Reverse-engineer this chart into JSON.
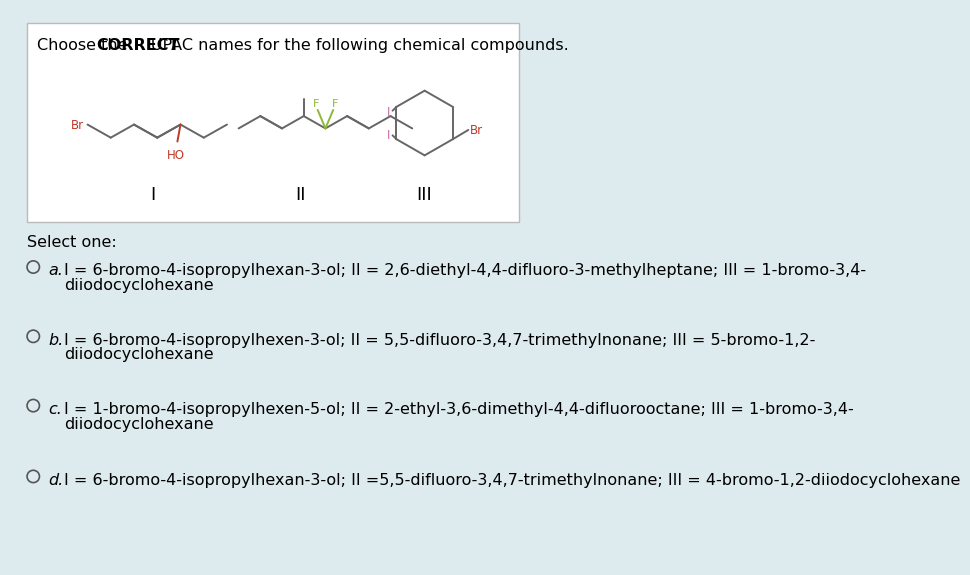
{
  "bg_color": "#ddeaee",
  "box_bg": "#ffffff",
  "box_border": "#cccccc",
  "title_fontsize": 11.5,
  "select_text": "Select one:",
  "options": [
    {
      "label": "a.",
      "line1": "I = 6-bromo-4-isopropylhexan-3-ol; II = 2,6-diethyl-4,4-difluoro-3-methylheptane; III = 1-bromo-3,4-",
      "line2": "diiodocyclohexane"
    },
    {
      "label": "b.",
      "line1": "I = 6-bromo-4-isopropylhexen-3-ol; II = 5,5-difluoro-3,4,7-trimethylnonane; III = 5-bromo-1,2-",
      "line2": "diiodocyclohexane"
    },
    {
      "label": "c.",
      "line1": "I = 1-bromo-4-isopropylhexen-5-ol; II = 2-ethyl-3,6-dimethyl-4,4-difluorooctane; III = 1-bromo-3,4-",
      "line2": "diiodocyclohexane"
    },
    {
      "label": "d.",
      "line1": "I = 6-bromo-4-isopropylhexan-3-ol; II =5,5-difluoro-3,4,7-trimethylnonane; III = 4-bromo-1,2-diiodocyclohexane",
      "line2": ""
    }
  ],
  "br_color": "#c0392b",
  "ho_color": "#c0392b",
  "f_color": "#8db83a",
  "i_color": "#cc66aa",
  "bond_color": "#666666",
  "option_fontsize": 11.5,
  "circle_color": "#555555"
}
